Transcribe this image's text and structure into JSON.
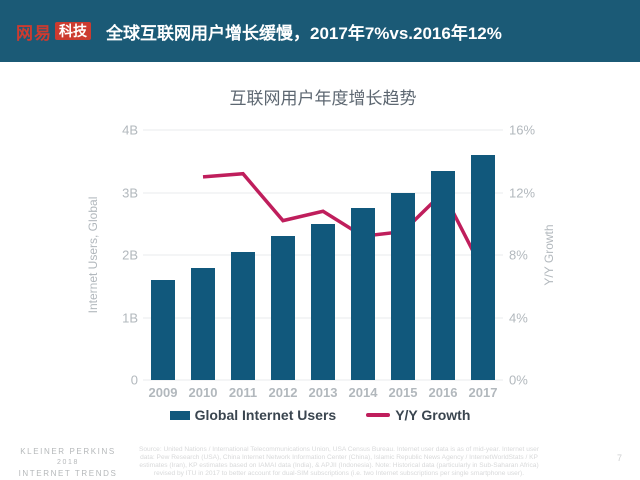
{
  "header": {
    "logo_brand": "网易",
    "logo_sub": "科技",
    "title": "全球互联网用户增长缓慢，2017年7%vs.2016年12%"
  },
  "chart_data": {
    "type": "bar",
    "title": "互联网用户年度增长趋势",
    "categories": [
      "2009",
      "2010",
      "2011",
      "2012",
      "2013",
      "2014",
      "2015",
      "2016",
      "2017"
    ],
    "series": [
      {
        "name": "Global Internet Users",
        "type": "bar",
        "axis": "left",
        "unit": "B",
        "values": [
          1.6,
          1.8,
          2.05,
          2.3,
          2.5,
          2.75,
          3.0,
          3.35,
          3.6
        ]
      },
      {
        "name": "Y/Y Growth",
        "type": "line",
        "axis": "right",
        "unit": "%",
        "values": [
          null,
          13,
          13.2,
          10.2,
          10.8,
          9.2,
          9.5,
          12,
          7
        ]
      }
    ],
    "left_axis": {
      "label": "Internet Users, Global",
      "min": 0,
      "max": 4,
      "ticks": [
        "4B",
        "3B",
        "2B",
        "1B",
        "0"
      ]
    },
    "right_axis": {
      "label": "Y/Y Growth",
      "min": 0,
      "max": 16,
      "ticks": [
        "16%",
        "12%",
        "8%",
        "4%",
        "0%"
      ]
    },
    "grid": true,
    "legend_position": "bottom"
  },
  "legend": {
    "bar_label": "Global Internet Users",
    "line_label": "Y/Y Growth"
  },
  "footer": {
    "brand_line1": "KLEINER PERKINS",
    "brand_line2": "2018",
    "brand_line3": "INTERNET TRENDS",
    "source": "Source: United Nations / International Telecommunications Union, USA Census Bureau. Internet user data is as of mid-year. Internet user data: Pew Research (USA), China Internet Network Information Center (China), Islamic Republic News Agency / InternetWorldStats / KP estimates (Iran), KP estimates based on IAMAI data (India), & APJII (Indonesia). Note: Historical data (particularly in Sub-Saharan Africa) revised by ITU in 2017 to better account for dual-SIM subscriptions (i.e. two Internet subscriptions per single smartphone user).",
    "page_number": "7"
  },
  "colors": {
    "header_bg": "#1B5A76",
    "logo_red": "#CC3B30",
    "bar_color": "#11587C",
    "line_color": "#BF1E5C",
    "title_grey": "#5D6771",
    "axis_grey": "#B2B8BD",
    "legend_text": "#3A454F",
    "grid": "#E9EBED",
    "footer_brand": "#B5B8BA",
    "source_grey": "#D8D9DA",
    "page_grey": "#CDCFD0"
  }
}
